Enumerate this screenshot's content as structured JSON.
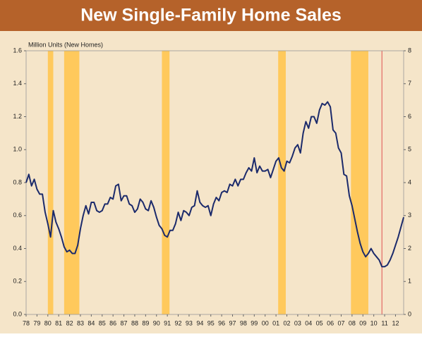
{
  "chart_data": {
    "type": "line",
    "title": "New Single-Family Home Sales",
    "y_label": "Million Units (New Homes)",
    "xlim": [
      1978,
      2012.75
    ],
    "xticks": [
      {
        "value": 1978,
        "label": "78"
      },
      {
        "value": 1979,
        "label": "79"
      },
      {
        "value": 1980,
        "label": "80"
      },
      {
        "value": 1981,
        "label": "81"
      },
      {
        "value": 1982,
        "label": "82"
      },
      {
        "value": 1983,
        "label": "83"
      },
      {
        "value": 1984,
        "label": "84"
      },
      {
        "value": 1985,
        "label": "85"
      },
      {
        "value": 1986,
        "label": "86"
      },
      {
        "value": 1987,
        "label": "87"
      },
      {
        "value": 1988,
        "label": "88"
      },
      {
        "value": 1989,
        "label": "89"
      },
      {
        "value": 1990,
        "label": "90"
      },
      {
        "value": 1991,
        "label": "91"
      },
      {
        "value": 1992,
        "label": "92"
      },
      {
        "value": 1993,
        "label": "93"
      },
      {
        "value": 1994,
        "label": "94"
      },
      {
        "value": 1995,
        "label": "95"
      },
      {
        "value": 1996,
        "label": "96"
      },
      {
        "value": 1997,
        "label": "97"
      },
      {
        "value": 1998,
        "label": "98"
      },
      {
        "value": 1999,
        "label": "99"
      },
      {
        "value": 2000,
        "label": "00"
      },
      {
        "value": 2001,
        "label": "01"
      },
      {
        "value": 2002,
        "label": "02"
      },
      {
        "value": 2003,
        "label": "03"
      },
      {
        "value": 2004,
        "label": "04"
      },
      {
        "value": 2005,
        "label": "05"
      },
      {
        "value": 2006,
        "label": "06"
      },
      {
        "value": 2007,
        "label": "07"
      },
      {
        "value": 2008,
        "label": "08"
      },
      {
        "value": 2009,
        "label": "09"
      },
      {
        "value": 2010,
        "label": "10"
      },
      {
        "value": 2011,
        "label": "11"
      },
      {
        "value": 2012,
        "label": "12"
      }
    ],
    "ylim": [
      0,
      1.6
    ],
    "yticks": [
      {
        "value": 0,
        "label": "0.0"
      },
      {
        "value": 0.2,
        "label": "0.2"
      },
      {
        "value": 0.4,
        "label": "0.4"
      },
      {
        "value": 0.6,
        "label": "0.6"
      },
      {
        "value": 0.8,
        "label": "0.8"
      },
      {
        "value": 1.0,
        "label": "1.0"
      },
      {
        "value": 1.2,
        "label": "1.2"
      },
      {
        "value": 1.4,
        "label": "1.4"
      },
      {
        "value": 1.6,
        "label": "1.6"
      }
    ],
    "y2lim": [
      0,
      8
    ],
    "y2ticks": [
      0,
      1,
      2,
      3,
      4,
      5,
      6,
      7,
      8
    ],
    "shaded_ranges": [
      [
        1980.0,
        1980.5
      ],
      [
        1981.5,
        1982.9
      ],
      [
        1990.5,
        1991.2
      ],
      [
        2001.2,
        2001.9
      ],
      [
        2007.9,
        2009.5
      ]
    ],
    "shade_color": "#ffc95c",
    "vline": {
      "x": 2010.75,
      "color": "#e05050"
    },
    "x": [
      1978,
      1978.25,
      1978.5,
      1978.75,
      1979,
      1979.25,
      1979.5,
      1979.75,
      1980,
      1980.25,
      1980.5,
      1980.75,
      1981,
      1981.25,
      1981.5,
      1981.75,
      1982,
      1982.25,
      1982.5,
      1982.75,
      1983,
      1983.25,
      1983.5,
      1983.75,
      1984,
      1984.25,
      1984.5,
      1984.75,
      1985,
      1985.25,
      1985.5,
      1985.75,
      1986,
      1986.25,
      1986.5,
      1986.75,
      1987,
      1987.25,
      1987.5,
      1987.75,
      1988,
      1988.25,
      1988.5,
      1988.75,
      1989,
      1989.25,
      1989.5,
      1989.75,
      1990,
      1990.25,
      1990.5,
      1990.75,
      1991,
      1991.25,
      1991.5,
      1991.75,
      1992,
      1992.25,
      1992.5,
      1992.75,
      1993,
      1993.25,
      1993.5,
      1993.75,
      1994,
      1994.25,
      1994.5,
      1994.75,
      1995,
      1995.25,
      1995.5,
      1995.75,
      1996,
      1996.25,
      1996.5,
      1996.75,
      1997,
      1997.25,
      1997.5,
      1997.75,
      1998,
      1998.25,
      1998.5,
      1998.75,
      1999,
      1999.25,
      1999.5,
      1999.75,
      2000,
      2000.25,
      2000.5,
      2000.75,
      2001,
      2001.25,
      2001.5,
      2001.75,
      2002,
      2002.25,
      2002.5,
      2002.75,
      2003,
      2003.25,
      2003.5,
      2003.75,
      2004,
      2004.25,
      2004.5,
      2004.75,
      2005,
      2005.25,
      2005.5,
      2005.75,
      2006,
      2006.25,
      2006.5,
      2006.75,
      2007,
      2007.25,
      2007.5,
      2007.75,
      2008,
      2008.25,
      2008.5,
      2008.75,
      2009,
      2009.25,
      2009.5,
      2009.75,
      2010,
      2010.25,
      2010.5,
      2010.75,
      2011,
      2011.25,
      2011.5,
      2011.75,
      2012,
      2012.25,
      2012.5,
      2012.75
    ],
    "series": [
      {
        "color": "#1b2a6b",
        "values": [
          0.8,
          0.85,
          0.78,
          0.82,
          0.76,
          0.73,
          0.73,
          0.62,
          0.55,
          0.47,
          0.63,
          0.56,
          0.52,
          0.47,
          0.41,
          0.38,
          0.39,
          0.37,
          0.37,
          0.42,
          0.52,
          0.6,
          0.66,
          0.61,
          0.68,
          0.68,
          0.63,
          0.62,
          0.63,
          0.67,
          0.67,
          0.71,
          0.7,
          0.78,
          0.79,
          0.69,
          0.72,
          0.72,
          0.67,
          0.66,
          0.62,
          0.64,
          0.7,
          0.68,
          0.64,
          0.63,
          0.69,
          0.65,
          0.59,
          0.54,
          0.52,
          0.48,
          0.47,
          0.51,
          0.51,
          0.55,
          0.62,
          0.57,
          0.63,
          0.62,
          0.6,
          0.65,
          0.66,
          0.75,
          0.68,
          0.66,
          0.65,
          0.66,
          0.6,
          0.67,
          0.71,
          0.69,
          0.74,
          0.75,
          0.74,
          0.79,
          0.78,
          0.82,
          0.78,
          0.82,
          0.82,
          0.86,
          0.89,
          0.87,
          0.95,
          0.86,
          0.9,
          0.87,
          0.87,
          0.88,
          0.83,
          0.88,
          0.93,
          0.95,
          0.89,
          0.87,
          0.93,
          0.92,
          0.96,
          1.01,
          1.03,
          0.98,
          1.1,
          1.17,
          1.13,
          1.2,
          1.2,
          1.16,
          1.24,
          1.28,
          1.27,
          1.29,
          1.26,
          1.12,
          1.1,
          1.01,
          0.98,
          0.85,
          0.84,
          0.72,
          0.66,
          0.58,
          0.5,
          0.43,
          0.38,
          0.35,
          0.37,
          0.4,
          0.37,
          0.35,
          0.33,
          0.29,
          0.29,
          0.3,
          0.33,
          0.37,
          0.42,
          0.47,
          0.53,
          0.59
        ]
      }
    ]
  }
}
